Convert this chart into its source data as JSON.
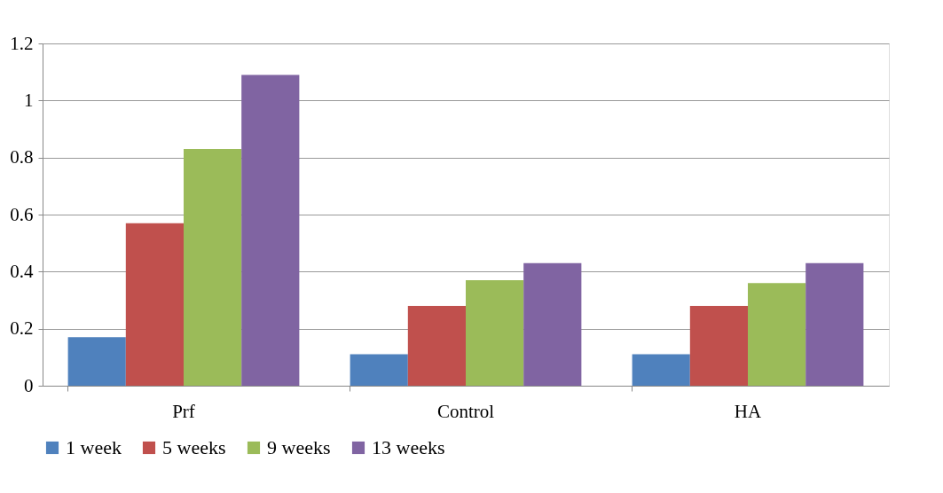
{
  "chart_data": {
    "type": "bar",
    "categories": [
      "Prf",
      "Control",
      "HA"
    ],
    "series": [
      {
        "name": "1 week",
        "color": "#4f81bd",
        "values": [
          0.17,
          0.11,
          0.11
        ]
      },
      {
        "name": "5 weeks",
        "color": "#c0504d",
        "values": [
          0.57,
          0.28,
          0.28
        ]
      },
      {
        "name": "9 weeks",
        "color": "#9bbb59",
        "values": [
          0.83,
          0.37,
          0.36
        ]
      },
      {
        "name": "13 weeks",
        "color": "#8064a2",
        "values": [
          1.09,
          0.43,
          0.43
        ]
      }
    ],
    "ylim": [
      0,
      1.2
    ],
    "yticks": [
      0,
      0.2,
      0.4,
      0.6,
      0.8,
      1,
      1.2
    ],
    "grid": "y",
    "legend": "bottom"
  }
}
